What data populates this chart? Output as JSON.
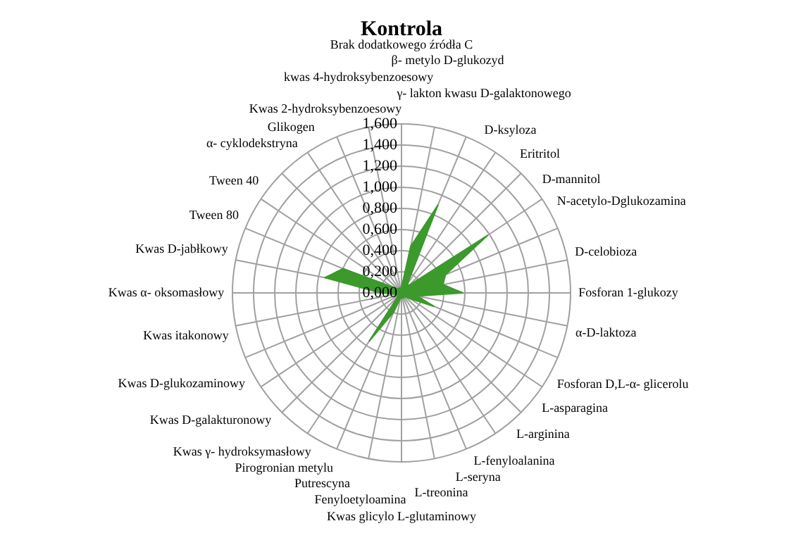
{
  "chart_data": {
    "type": "radar",
    "title": "Kontrola",
    "categories": [
      "Brak dodatkowego źródła C",
      "β- metylo D-glukozyd",
      "γ- lakton kwasu D-galaktonowego",
      "D-ksyloza",
      "Eritritol",
      "D-mannitol",
      "N-acetylo-Dglukozamina",
      "D-celobioza",
      "Fosforan 1-glukozy",
      "α-D-laktoza",
      "Fosforan D,L-α- glicerolu",
      "L-asparagina",
      "L-arginina",
      "L-fenyloalanina",
      "L-seryna",
      "L-treonina",
      "Kwas glicylo L-glutaminowy",
      "Fenyloetyloamina",
      "Putrescyna",
      "Pirogronian metylu",
      "Kwas γ- hydroksymasłowy",
      "Kwas D-galakturonowy",
      "Kwas D-glukozaminowy",
      "Kwas itakonowy",
      "Kwas α- oksomasłowy",
      "Kwas D-jabłkowy",
      "Tween 80",
      "Tween 40",
      "α- cyklodekstryna",
      "Glikogen",
      "Kwas 2-hydroksybenzoesowy",
      "kwas 4-hydroksybenzoesowy"
    ],
    "series": [
      {
        "color": "#3c9a2c",
        "values": [
          0.05,
          0.45,
          0.9,
          0.1,
          0.1,
          0.98,
          0.45,
          0.4,
          0.58,
          0.15,
          0.33,
          0.1,
          0.05,
          0.05,
          0.05,
          0.05,
          0.05,
          0.05,
          0.2,
          0.55,
          0.05,
          0.05,
          0.05,
          0.05,
          0.2,
          0.74,
          0.6,
          0.1,
          0.05,
          0.05,
          0.05,
          0.05
        ]
      }
    ],
    "ylim": [
      0,
      1.6
    ],
    "yticks": [
      {
        "value": 0,
        "label": "0,000"
      },
      {
        "value": 0.2,
        "label": "0,200"
      },
      {
        "value": 0.4,
        "label": "0,400"
      },
      {
        "value": 0.6,
        "label": "0,600"
      },
      {
        "value": 0.8,
        "label": "0,800"
      },
      {
        "value": 1,
        "label": "1,000"
      },
      {
        "value": 1.2,
        "label": "1,200"
      },
      {
        "value": 1.4,
        "label": "1,400"
      },
      {
        "value": 1.6,
        "label": "1,600"
      }
    ],
    "grid": true,
    "legend": false,
    "marker": "none"
  }
}
